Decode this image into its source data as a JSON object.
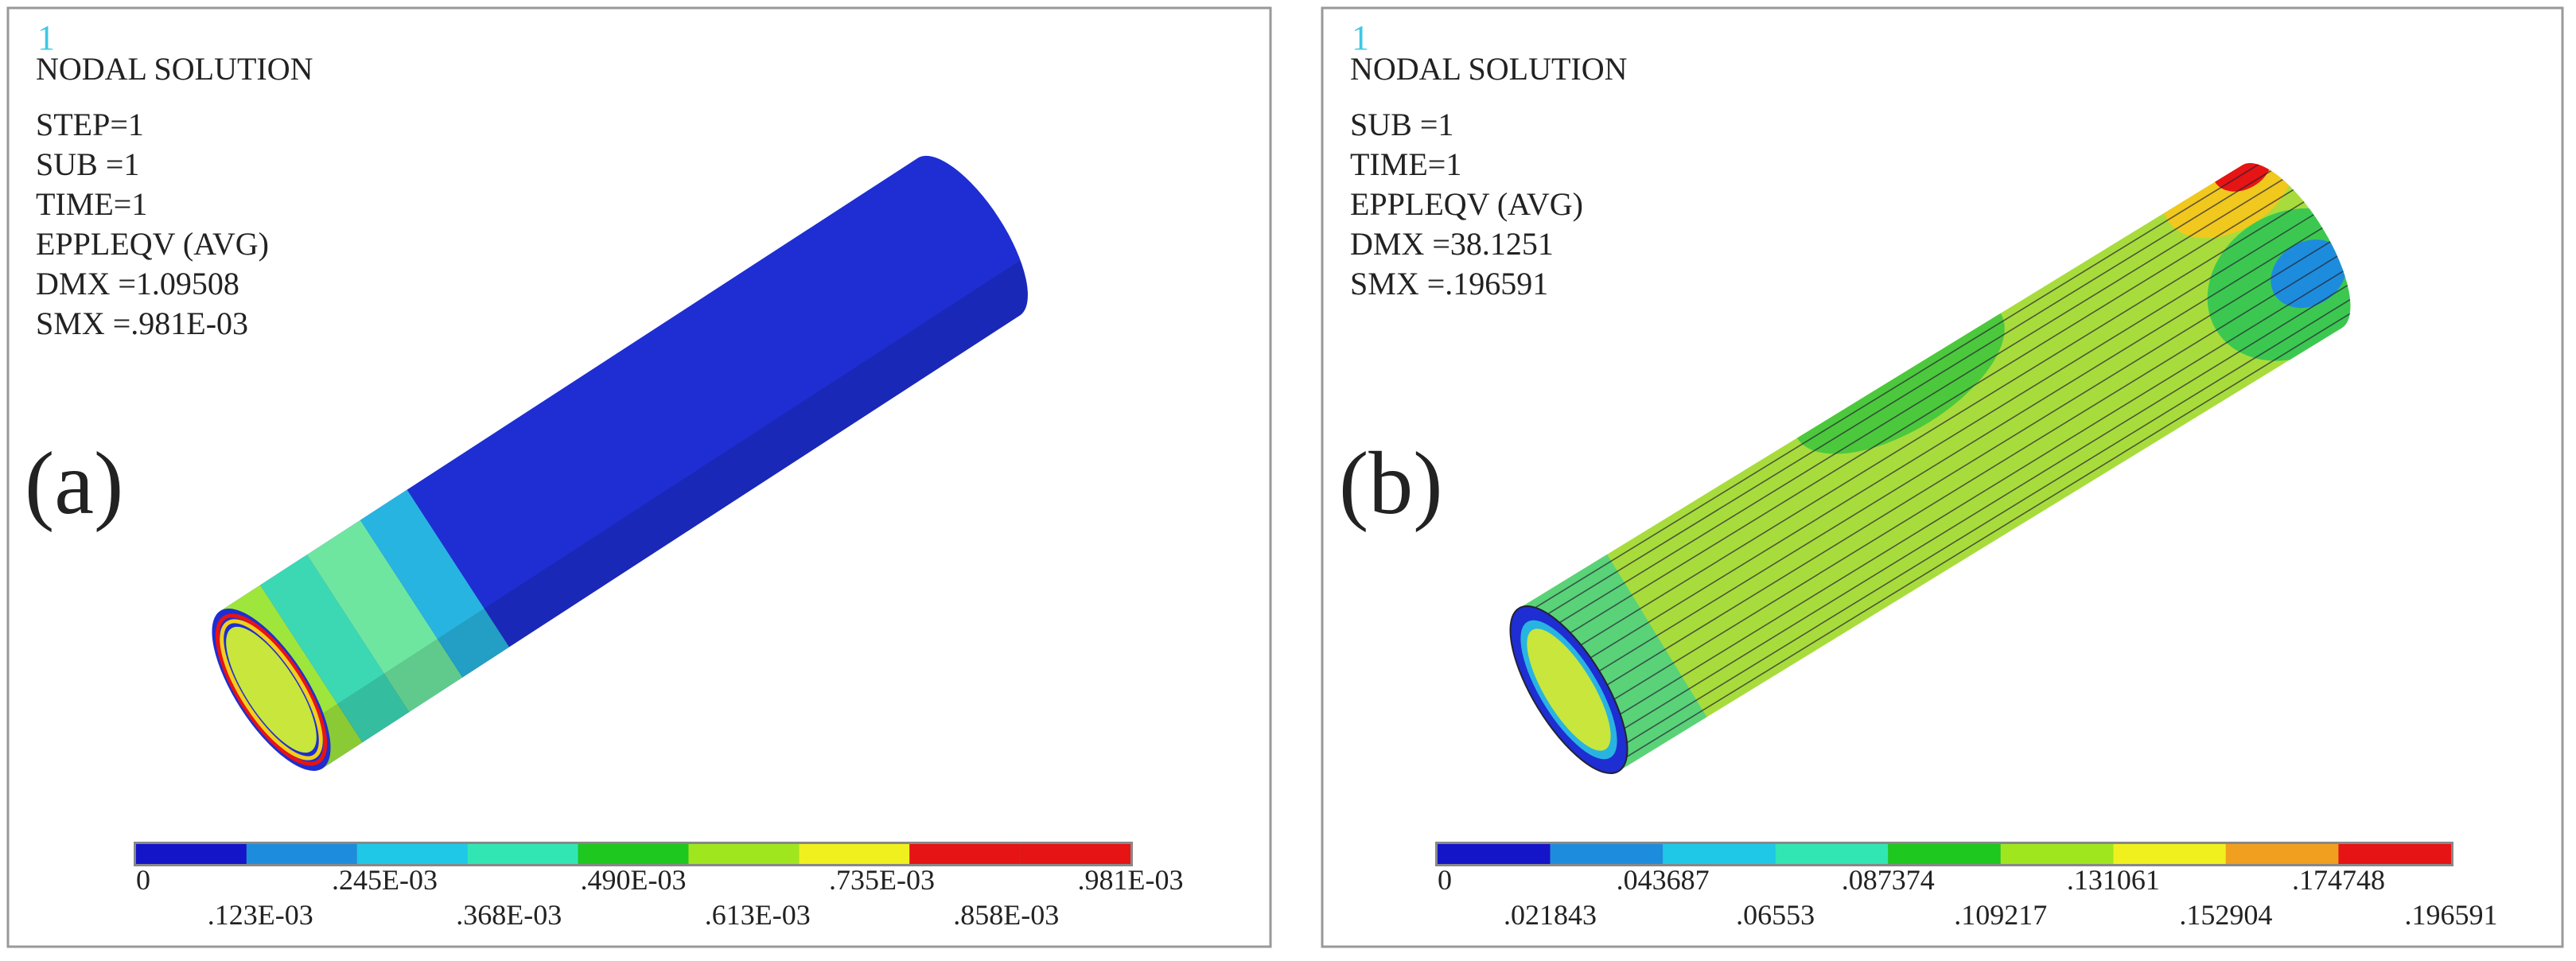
{
  "panels": [
    {
      "window_number": "1",
      "title": "NODAL SOLUTION",
      "info": [
        "STEP=1",
        "SUB =1",
        "TIME=1",
        "EPPLEQV  (AVG)",
        "DMX =1.09508",
        "SMX =.981E-03"
      ],
      "label": "(a)",
      "legend": {
        "colors": [
          "#1414c8",
          "#1e8cdc",
          "#1ec8e6",
          "#32e6b4",
          "#1ec81e",
          "#a0e61e",
          "#f0f01e",
          "#e61414",
          "#e61414"
        ],
        "labels": [
          "0",
          ".123E-03",
          ".245E-03",
          ".368E-03",
          ".490E-03",
          ".613E-03",
          ".735E-03",
          ".858E-03",
          ".981E-03"
        ]
      }
    },
    {
      "window_number": "1",
      "title": "NODAL SOLUTION",
      "info": [
        "SUB =1",
        "TIME=1",
        "EPPLEQV  (AVG)",
        "DMX =38.1251",
        "SMX =.196591"
      ],
      "label": "(b)",
      "legend": {
        "colors": [
          "#1414c8",
          "#1e8cdc",
          "#1ec8e6",
          "#32e6b4",
          "#1ec81e",
          "#a0e61e",
          "#f0f01e",
          "#f0a01e",
          "#e61414"
        ],
        "labels": [
          "0",
          ".021843",
          ".043687",
          ".06553",
          ".087374",
          ".109217",
          ".131061",
          ".152904",
          ".174748",
          ".196591"
        ]
      }
    }
  ]
}
